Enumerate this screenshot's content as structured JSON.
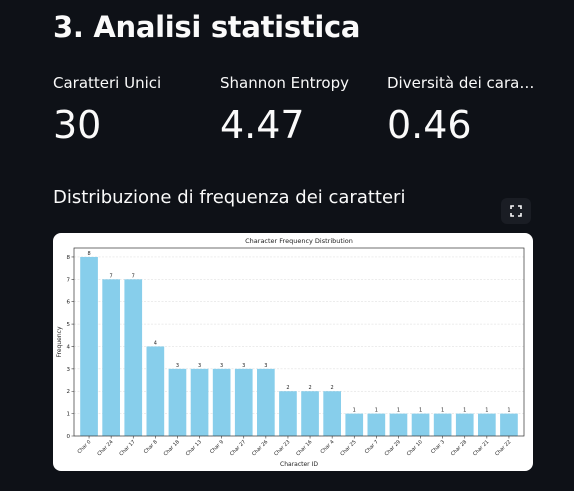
{
  "section": {
    "heading": "3. Analisi statistica",
    "chart_heading": "Distribuzione di frequenza dei caratteri"
  },
  "metrics": [
    {
      "label": "Caratteri Unici",
      "value": "30"
    },
    {
      "label": "Shannon Entropy",
      "value": "4.47"
    },
    {
      "label": "Diversità dei caratteri",
      "value": "0.46"
    }
  ],
  "toolbar": {
    "fullscreen_icon": "fullscreen-icon"
  },
  "colors": {
    "background": "#0e1117",
    "bar": "#87ceeb",
    "text": "#fafafa"
  },
  "chart_data": {
    "type": "bar",
    "title": "Character Frequency Distribution",
    "xlabel": "Character ID",
    "ylabel": "Frequency",
    "ylim": [
      0,
      8.4
    ],
    "yticks": [
      0,
      1,
      2,
      3,
      4,
      5,
      6,
      7,
      8
    ],
    "grid": "y",
    "categories": [
      "Char 0",
      "Char 24",
      "Char 17",
      "Char 8",
      "Char 18",
      "Char 13",
      "Char 9",
      "Char 27",
      "Char 26",
      "Char 23",
      "Char 16",
      "Char 4",
      "Char 25",
      "Char 7",
      "Char 29",
      "Char 10",
      "Char 3",
      "Char 28",
      "Char 21",
      "Char 22"
    ],
    "values": [
      8,
      7,
      7,
      4,
      3,
      3,
      3,
      3,
      3,
      2,
      2,
      2,
      1,
      1,
      1,
      1,
      1,
      1,
      1,
      1
    ]
  }
}
